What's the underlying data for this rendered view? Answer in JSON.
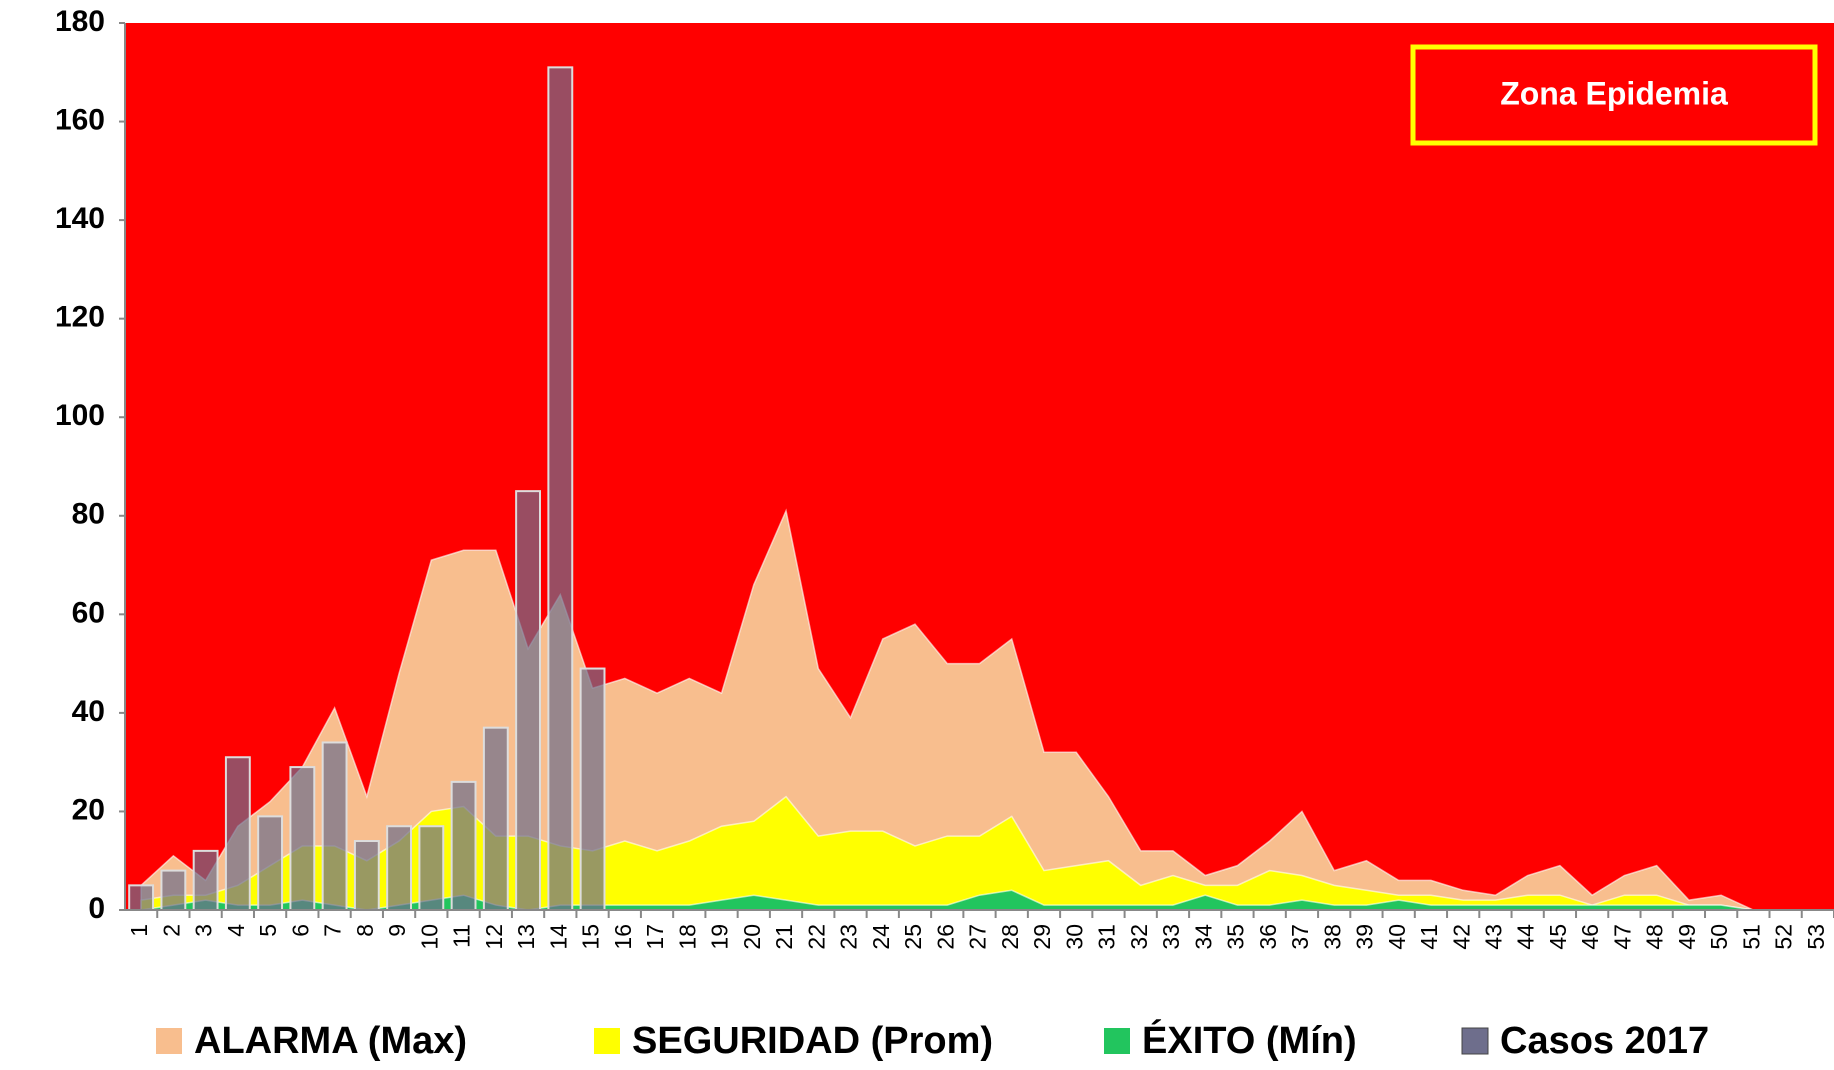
{
  "chart_data": {
    "type": "endemic",
    "annotation": "Zona Epidemia",
    "plot_background": "#ff0000",
    "categories": [
      "1",
      "2",
      "3",
      "4",
      "5",
      "6",
      "7",
      "8",
      "9",
      "10",
      "11",
      "12",
      "13",
      "14",
      "15",
      "16",
      "17",
      "18",
      "19",
      "20",
      "21",
      "22",
      "23",
      "24",
      "25",
      "26",
      "27",
      "28",
      "29",
      "30",
      "31",
      "32",
      "33",
      "34",
      "35",
      "36",
      "37",
      "38",
      "39",
      "40",
      "41",
      "42",
      "43",
      "44",
      "45",
      "46",
      "47",
      "48",
      "49",
      "50",
      "51",
      "52",
      "53"
    ],
    "ylim": [
      0,
      180
    ],
    "yticks": [
      0,
      20,
      40,
      60,
      80,
      100,
      120,
      140,
      160,
      180
    ],
    "series": [
      {
        "name": "ALARMA (Max)",
        "kind": "area",
        "color": "#f8be8e",
        "values": [
          5,
          11,
          6,
          17,
          22,
          29,
          41,
          23,
          48,
          71,
          73,
          73,
          53,
          64,
          45,
          47,
          44,
          47,
          44,
          66,
          81,
          49,
          39,
          55,
          58,
          50,
          50,
          55,
          32,
          32,
          23,
          12,
          12,
          7,
          9,
          14,
          20,
          8,
          10,
          6,
          6,
          4,
          3,
          7,
          9,
          3,
          7,
          9,
          2,
          3,
          0,
          0,
          0
        ]
      },
      {
        "name": "SEGURIDAD (Prom)",
        "kind": "area",
        "color": "#ffff00",
        "values": [
          2,
          3,
          3,
          5,
          9,
          13,
          13,
          10,
          14,
          20,
          21,
          15,
          15,
          13,
          12,
          14,
          12,
          14,
          17,
          18,
          23,
          15,
          16,
          16,
          13,
          15,
          15,
          19,
          8,
          9,
          10,
          5,
          7,
          5,
          5,
          8,
          7,
          5,
          4,
          3,
          3,
          2,
          2,
          3,
          3,
          1,
          3,
          3,
          1,
          1,
          0,
          0,
          0
        ]
      },
      {
        "name": "ÉXITO (Mín)",
        "kind": "area",
        "color": "#22c55e",
        "values": [
          0,
          1,
          2,
          1,
          1,
          2,
          1,
          0,
          1,
          2,
          3,
          1,
          0,
          1,
          1,
          1,
          1,
          1,
          2,
          3,
          2,
          1,
          1,
          1,
          1,
          1,
          3,
          4,
          1,
          1,
          1,
          1,
          1,
          3,
          1,
          1,
          2,
          1,
          1,
          2,
          1,
          1,
          1,
          1,
          1,
          1,
          1,
          1,
          1,
          1,
          0,
          0,
          0
        ]
      },
      {
        "name": "Casos 2017",
        "kind": "bar",
        "color": "#6e6e8c",
        "values": [
          5,
          8,
          12,
          31,
          19,
          29,
          34,
          14,
          17,
          17,
          26,
          37,
          85,
          171,
          49,
          null,
          null,
          null,
          null,
          null,
          null,
          null,
          null,
          null,
          null,
          null,
          null,
          null,
          null,
          null,
          null,
          null,
          null,
          null,
          null,
          null,
          null,
          null,
          null,
          null,
          null,
          null,
          null,
          null,
          null,
          null,
          null,
          null,
          null,
          null,
          null,
          null,
          null
        ]
      }
    ]
  }
}
